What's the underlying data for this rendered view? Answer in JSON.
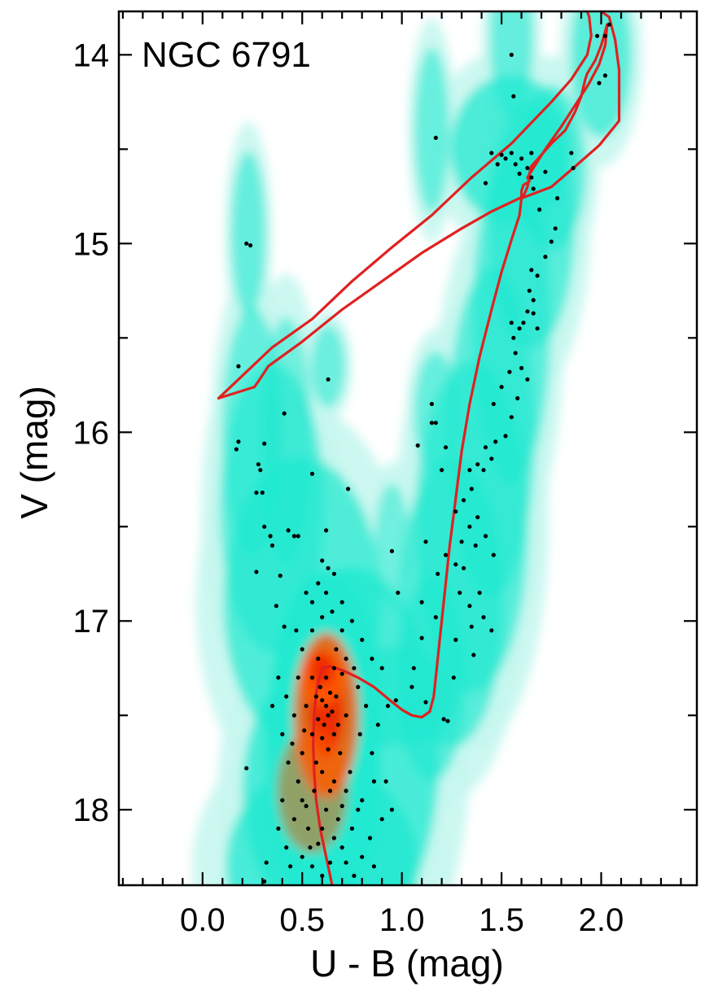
{
  "chart_data": {
    "type": "scatter",
    "panel_label": "NGC 6791",
    "xlabel": "U - B (mag)",
    "ylabel": "V (mag)",
    "xlim": [
      -0.42,
      2.48
    ],
    "ylim": [
      18.4,
      13.77
    ],
    "y_inverted": true,
    "x_ticks": [
      0.0,
      0.5,
      1.0,
      1.5,
      2.0
    ],
    "x_tick_labels": [
      "0.0",
      "0.5",
      "1.0",
      "1.5",
      "2.0"
    ],
    "y_ticks": [
      14,
      15,
      16,
      17,
      18
    ],
    "y_tick_labels": [
      "14",
      "15",
      "16",
      "17",
      "18"
    ],
    "grid": false,
    "colors": {
      "density_low": "#c8f7f0",
      "density_mid": "#20e8d0",
      "density_high": "#ff5a00",
      "density_peak": "#ee2200",
      "points": "#000000",
      "isochrone": "#e02020"
    },
    "density": [
      {
        "x": 0.62,
        "y": 17.5,
        "sx": 0.13,
        "sy": 0.35,
        "w": 1.0
      },
      {
        "x": 0.6,
        "y": 17.3,
        "sx": 0.09,
        "sy": 0.12,
        "w": 0.9
      },
      {
        "x": 0.55,
        "y": 17.9,
        "sx": 0.16,
        "sy": 0.3,
        "w": 0.7
      },
      {
        "x": 0.6,
        "y": 18.3,
        "sx": 0.22,
        "sy": 0.25,
        "w": 0.5
      },
      {
        "x": 0.75,
        "y": 17.7,
        "sx": 0.2,
        "sy": 0.45,
        "w": 0.55
      },
      {
        "x": 0.5,
        "y": 16.9,
        "sx": 0.18,
        "sy": 0.35,
        "w": 0.45
      },
      {
        "x": 0.35,
        "y": 16.4,
        "sx": 0.12,
        "sy": 0.35,
        "w": 0.35
      },
      {
        "x": 0.25,
        "y": 16.0,
        "sx": 0.07,
        "sy": 0.3,
        "w": 0.28
      },
      {
        "x": 0.95,
        "y": 17.4,
        "sx": 0.15,
        "sy": 0.12,
        "w": 0.4
      },
      {
        "x": 1.15,
        "y": 17.3,
        "sx": 0.08,
        "sy": 0.25,
        "w": 0.35
      },
      {
        "x": 1.25,
        "y": 16.9,
        "sx": 0.12,
        "sy": 0.35,
        "w": 0.4
      },
      {
        "x": 1.35,
        "y": 16.5,
        "sx": 0.13,
        "sy": 0.4,
        "w": 0.38
      },
      {
        "x": 1.45,
        "y": 16.0,
        "sx": 0.1,
        "sy": 0.4,
        "w": 0.35
      },
      {
        "x": 1.55,
        "y": 15.4,
        "sx": 0.09,
        "sy": 0.4,
        "w": 0.35
      },
      {
        "x": 1.65,
        "y": 14.9,
        "sx": 0.1,
        "sy": 0.3,
        "w": 0.38
      },
      {
        "x": 1.55,
        "y": 14.5,
        "sx": 0.14,
        "sy": 0.18,
        "w": 0.55
      },
      {
        "x": 1.75,
        "y": 14.6,
        "sx": 0.08,
        "sy": 0.2,
        "w": 0.35
      },
      {
        "x": 1.55,
        "y": 13.9,
        "sx": 0.05,
        "sy": 0.2,
        "w": 0.3
      },
      {
        "x": 2.0,
        "y": 14.0,
        "sx": 0.07,
        "sy": 0.2,
        "w": 0.4
      },
      {
        "x": 1.15,
        "y": 14.4,
        "sx": 0.04,
        "sy": 0.2,
        "w": 0.28
      },
      {
        "x": 1.17,
        "y": 15.9,
        "sx": 0.05,
        "sy": 0.15,
        "w": 0.28
      },
      {
        "x": 0.23,
        "y": 14.95,
        "sx": 0.04,
        "sy": 0.2,
        "w": 0.3
      },
      {
        "x": 0.63,
        "y": 15.65,
        "sx": 0.04,
        "sy": 0.1,
        "w": 0.25
      },
      {
        "x": 0.42,
        "y": 16.05,
        "sx": 0.06,
        "sy": 0.3,
        "w": 0.2
      },
      {
        "x": 0.95,
        "y": 16.6,
        "sx": 0.04,
        "sy": 0.15,
        "w": 0.2
      }
    ],
    "stars": [
      [
        1.55,
        14.0
      ],
      [
        1.17,
        14.44
      ],
      [
        1.56,
        14.22
      ],
      [
        1.98,
        13.9
      ],
      [
        2.02,
        13.9
      ],
      [
        2.04,
        13.84
      ],
      [
        1.99,
        14.15
      ],
      [
        2.02,
        14.11
      ],
      [
        1.45,
        14.52
      ],
      [
        1.5,
        14.53
      ],
      [
        1.52,
        14.55
      ],
      [
        1.55,
        14.52
      ],
      [
        1.6,
        14.55
      ],
      [
        1.65,
        14.52
      ],
      [
        1.85,
        14.52
      ],
      [
        1.48,
        14.58
      ],
      [
        1.57,
        14.58
      ],
      [
        1.63,
        14.6
      ],
      [
        1.72,
        14.62
      ],
      [
        1.86,
        14.6
      ],
      [
        1.59,
        14.63
      ],
      [
        1.65,
        14.65
      ],
      [
        1.42,
        14.68
      ],
      [
        1.66,
        14.71
      ],
      [
        1.69,
        14.82
      ],
      [
        1.78,
        14.76
      ],
      [
        1.77,
        14.92
      ],
      [
        1.75,
        14.99
      ],
      [
        1.72,
        15.07
      ],
      [
        1.65,
        15.14
      ],
      [
        1.68,
        15.17
      ],
      [
        1.64,
        15.25
      ],
      [
        1.66,
        15.3
      ],
      [
        1.63,
        15.36
      ],
      [
        1.55,
        15.42
      ],
      [
        1.61,
        15.42
      ],
      [
        1.66,
        15.37
      ],
      [
        1.59,
        15.45
      ],
      [
        1.68,
        15.45
      ],
      [
        1.56,
        15.5
      ],
      [
        1.57,
        15.58
      ],
      [
        1.54,
        15.68
      ],
      [
        1.6,
        15.66
      ],
      [
        1.63,
        15.72
      ],
      [
        1.5,
        15.76
      ],
      [
        1.58,
        15.82
      ],
      [
        1.55,
        15.92
      ],
      [
        1.52,
        16.02
      ],
      [
        1.46,
        15.85
      ],
      [
        1.47,
        16.05
      ],
      [
        1.45,
        16.14
      ],
      [
        1.42,
        16.08
      ],
      [
        1.38,
        16.17
      ],
      [
        1.41,
        16.2
      ],
      [
        1.34,
        16.2
      ],
      [
        1.35,
        16.3
      ],
      [
        1.31,
        16.36
      ],
      [
        1.27,
        16.42
      ],
      [
        1.38,
        16.45
      ],
      [
        1.34,
        16.5
      ],
      [
        1.3,
        16.58
      ],
      [
        1.37,
        16.6
      ],
      [
        1.42,
        16.55
      ],
      [
        1.46,
        16.65
      ],
      [
        1.27,
        16.7
      ],
      [
        1.31,
        16.72
      ],
      [
        1.29,
        16.85
      ],
      [
        1.39,
        16.85
      ],
      [
        1.34,
        16.92
      ],
      [
        1.41,
        16.98
      ],
      [
        1.35,
        17.03
      ],
      [
        1.45,
        17.05
      ],
      [
        1.27,
        17.1
      ],
      [
        1.36,
        17.18
      ],
      [
        1.26,
        17.3
      ],
      [
        1.21,
        17.52
      ],
      [
        1.23,
        17.53
      ],
      [
        1.08,
        16.07
      ],
      [
        1.15,
        15.85
      ],
      [
        1.15,
        15.95
      ],
      [
        1.17,
        15.95
      ],
      [
        1.22,
        16.08
      ],
      [
        1.2,
        16.2
      ],
      [
        1.12,
        16.58
      ],
      [
        1.22,
        16.65
      ],
      [
        1.18,
        16.75
      ],
      [
        1.1,
        16.9
      ],
      [
        1.17,
        16.98
      ],
      [
        1.1,
        17.09
      ],
      [
        1.06,
        17.25
      ],
      [
        1.05,
        17.35
      ],
      [
        1.12,
        17.43
      ],
      [
        0.97,
        17.42
      ],
      [
        0.93,
        17.45
      ],
      [
        0.22,
        15.0
      ],
      [
        0.24,
        15.01
      ],
      [
        0.18,
        15.65
      ],
      [
        0.63,
        15.72
      ],
      [
        0.41,
        15.9
      ],
      [
        0.18,
        16.05
      ],
      [
        0.17,
        16.09
      ],
      [
        0.28,
        16.17
      ],
      [
        0.31,
        16.06
      ],
      [
        0.29,
        16.2
      ],
      [
        0.27,
        16.32
      ],
      [
        0.3,
        16.32
      ],
      [
        0.55,
        16.22
      ],
      [
        0.73,
        16.3
      ],
      [
        0.31,
        16.5
      ],
      [
        0.34,
        16.55
      ],
      [
        0.35,
        16.6
      ],
      [
        0.43,
        16.52
      ],
      [
        0.46,
        16.55
      ],
      [
        0.48,
        16.55
      ],
      [
        0.62,
        16.52
      ],
      [
        0.27,
        16.74
      ],
      [
        0.39,
        16.76
      ],
      [
        0.6,
        16.68
      ],
      [
        0.63,
        16.72
      ],
      [
        0.66,
        16.75
      ],
      [
        0.95,
        16.63
      ],
      [
        0.98,
        16.85
      ],
      [
        0.37,
        16.92
      ],
      [
        0.41,
        17.03
      ],
      [
        0.22,
        17.78
      ],
      [
        0.32,
        18.28
      ],
      [
        0.31,
        18.38
      ],
      [
        0.62,
        17.45
      ],
      [
        0.6,
        17.42
      ],
      [
        0.64,
        17.38
      ],
      [
        0.63,
        17.5
      ],
      [
        0.61,
        17.55
      ],
      [
        0.65,
        17.48
      ],
      [
        0.59,
        17.35
      ],
      [
        0.66,
        17.6
      ],
      [
        0.58,
        17.52
      ],
      [
        0.62,
        17.3
      ],
      [
        0.6,
        17.62
      ],
      [
        0.63,
        17.68
      ],
      [
        0.57,
        17.4
      ],
      [
        0.67,
        17.4
      ],
      [
        0.55,
        17.3
      ],
      [
        0.7,
        17.28
      ],
      [
        0.52,
        17.45
      ],
      [
        0.72,
        17.5
      ],
      [
        0.55,
        17.6
      ],
      [
        0.69,
        17.7
      ],
      [
        0.5,
        17.7
      ],
      [
        0.6,
        17.8
      ],
      [
        0.66,
        17.85
      ],
      [
        0.56,
        17.9
      ],
      [
        0.72,
        17.9
      ],
      [
        0.5,
        17.95
      ],
      [
        0.62,
        18.0
      ],
      [
        0.68,
        18.05
      ],
      [
        0.53,
        18.1
      ],
      [
        0.75,
        18.1
      ],
      [
        0.58,
        18.18
      ],
      [
        0.7,
        18.2
      ],
      [
        0.5,
        18.25
      ],
      [
        0.64,
        18.28
      ],
      [
        0.8,
        18.25
      ],
      [
        0.44,
        18.3
      ],
      [
        0.6,
        18.35
      ],
      [
        0.76,
        18.35
      ],
      [
        0.86,
        18.3
      ],
      [
        0.48,
        17.85
      ],
      [
        0.45,
        17.65
      ],
      [
        0.46,
        17.5
      ],
      [
        0.48,
        17.3
      ],
      [
        0.5,
        17.15
      ],
      [
        0.55,
        17.05
      ],
      [
        0.6,
        16.98
      ],
      [
        0.65,
        16.95
      ],
      [
        0.7,
        16.9
      ],
      [
        0.55,
        16.9
      ],
      [
        0.62,
        16.85
      ],
      [
        0.58,
        16.8
      ],
      [
        0.75,
        17.0
      ],
      [
        0.8,
        17.1
      ],
      [
        0.85,
        17.2
      ],
      [
        0.9,
        17.25
      ],
      [
        0.78,
        17.35
      ],
      [
        0.82,
        17.45
      ],
      [
        0.88,
        17.55
      ],
      [
        0.85,
        17.7
      ],
      [
        0.92,
        17.85
      ],
      [
        0.8,
        17.95
      ],
      [
        0.9,
        18.05
      ],
      [
        0.95,
        18.0
      ],
      [
        0.84,
        18.15
      ],
      [
        0.42,
        17.4
      ],
      [
        0.38,
        17.3
      ],
      [
        0.35,
        17.45
      ],
      [
        0.4,
        17.6
      ],
      [
        0.43,
        17.75
      ],
      [
        0.4,
        17.95
      ],
      [
        0.38,
        18.1
      ],
      [
        0.42,
        18.2
      ],
      [
        0.55,
        18.3
      ],
      [
        0.67,
        17.15
      ],
      [
        0.72,
        17.2
      ],
      [
        0.58,
        17.2
      ],
      [
        0.7,
        17.05
      ],
      [
        0.52,
        16.85
      ],
      [
        0.47,
        17.05
      ],
      [
        0.66,
        17.25
      ],
      [
        0.76,
        17.25
      ],
      [
        0.79,
        17.6
      ],
      [
        0.74,
        17.8
      ],
      [
        0.64,
        17.9
      ],
      [
        0.7,
        17.98
      ],
      [
        0.78,
        18.0
      ],
      [
        0.86,
        17.85
      ],
      [
        0.6,
        18.1
      ],
      [
        0.66,
        18.15
      ],
      [
        0.72,
        18.28
      ],
      [
        0.54,
        18.2
      ],
      [
        0.46,
        18.05
      ],
      [
        0.52,
        17.98
      ],
      [
        0.57,
        17.75
      ],
      [
        0.51,
        17.58
      ],
      [
        0.68,
        17.55
      ]
    ],
    "isochrone": [
      [
        0.65,
        18.4
      ],
      [
        0.63,
        18.3
      ],
      [
        0.61,
        18.2
      ],
      [
        0.59,
        18.1
      ],
      [
        0.57,
        17.95
      ],
      [
        0.56,
        17.8
      ],
      [
        0.555,
        17.65
      ],
      [
        0.56,
        17.5
      ],
      [
        0.57,
        17.38
      ],
      [
        0.585,
        17.3
      ],
      [
        0.605,
        17.25
      ],
      [
        0.64,
        17.24
      ],
      [
        0.7,
        17.26
      ],
      [
        0.78,
        17.3
      ],
      [
        0.86,
        17.35
      ],
      [
        0.94,
        17.42
      ],
      [
        1.0,
        17.47
      ],
      [
        1.05,
        17.5
      ],
      [
        1.1,
        17.51
      ],
      [
        1.14,
        17.48
      ],
      [
        1.16,
        17.4
      ],
      [
        1.18,
        17.2
      ],
      [
        1.2,
        17.0
      ],
      [
        1.22,
        16.8
      ],
      [
        1.24,
        16.6
      ],
      [
        1.27,
        16.35
      ],
      [
        1.3,
        16.1
      ],
      [
        1.34,
        15.85
      ],
      [
        1.39,
        15.6
      ],
      [
        1.45,
        15.35
      ],
      [
        1.5,
        15.15
      ],
      [
        1.55,
        14.98
      ],
      [
        1.59,
        14.85
      ],
      [
        1.6,
        14.76
      ],
      [
        1.6,
        14.72
      ],
      [
        1.61,
        14.69
      ],
      [
        1.64,
        14.67
      ],
      [
        1.63,
        14.65
      ],
      [
        1.66,
        14.6
      ],
      [
        1.72,
        14.5
      ],
      [
        1.8,
        14.38
      ],
      [
        1.88,
        14.25
      ],
      [
        1.94,
        14.15
      ],
      [
        1.99,
        14.05
      ],
      [
        2.02,
        13.95
      ],
      [
        2.03,
        13.84
      ],
      [
        2.0,
        13.95
      ],
      [
        1.97,
        14.03
      ],
      [
        1.93,
        14.1
      ],
      [
        1.92,
        14.13
      ],
      [
        1.9,
        14.22
      ],
      [
        1.87,
        14.3
      ],
      [
        1.82,
        14.4
      ],
      [
        1.75,
        14.47
      ],
      [
        1.7,
        14.53
      ],
      [
        1.65,
        14.59
      ],
      [
        1.64,
        14.63
      ],
      [
        1.64,
        14.65
      ],
      [
        1.63,
        14.7
      ],
      [
        1.61,
        14.75
      ],
      [
        1.57,
        14.77
      ],
      [
        1.45,
        14.83
      ],
      [
        1.3,
        14.92
      ],
      [
        1.1,
        15.05
      ],
      [
        0.9,
        15.2
      ],
      [
        0.7,
        15.35
      ],
      [
        0.5,
        15.52
      ],
      [
        0.33,
        15.65
      ],
      [
        0.28,
        15.73
      ],
      [
        0.26,
        15.76
      ],
      [
        0.08,
        15.82
      ],
      [
        0.1,
        15.8
      ],
      [
        0.22,
        15.68
      ],
      [
        0.35,
        15.55
      ],
      [
        0.55,
        15.4
      ],
      [
        0.75,
        15.2
      ],
      [
        0.95,
        15.02
      ],
      [
        1.15,
        14.85
      ],
      [
        1.35,
        14.65
      ],
      [
        1.55,
        14.47
      ],
      [
        1.75,
        14.25
      ],
      [
        1.85,
        14.13
      ],
      [
        1.93,
        14.0
      ],
      [
        1.95,
        13.9
      ],
      [
        1.94,
        13.8
      ],
      [
        1.93,
        13.77
      ]
    ],
    "isochrone_top": [
      [
        2.0,
        13.77
      ],
      [
        2.04,
        13.8
      ],
      [
        2.07,
        13.92
      ],
      [
        2.09,
        14.08
      ],
      [
        2.09,
        14.35
      ],
      [
        1.99,
        14.48
      ],
      [
        1.86,
        14.6
      ],
      [
        1.75,
        14.7
      ],
      [
        1.65,
        14.74
      ],
      [
        1.6,
        14.76
      ]
    ]
  }
}
